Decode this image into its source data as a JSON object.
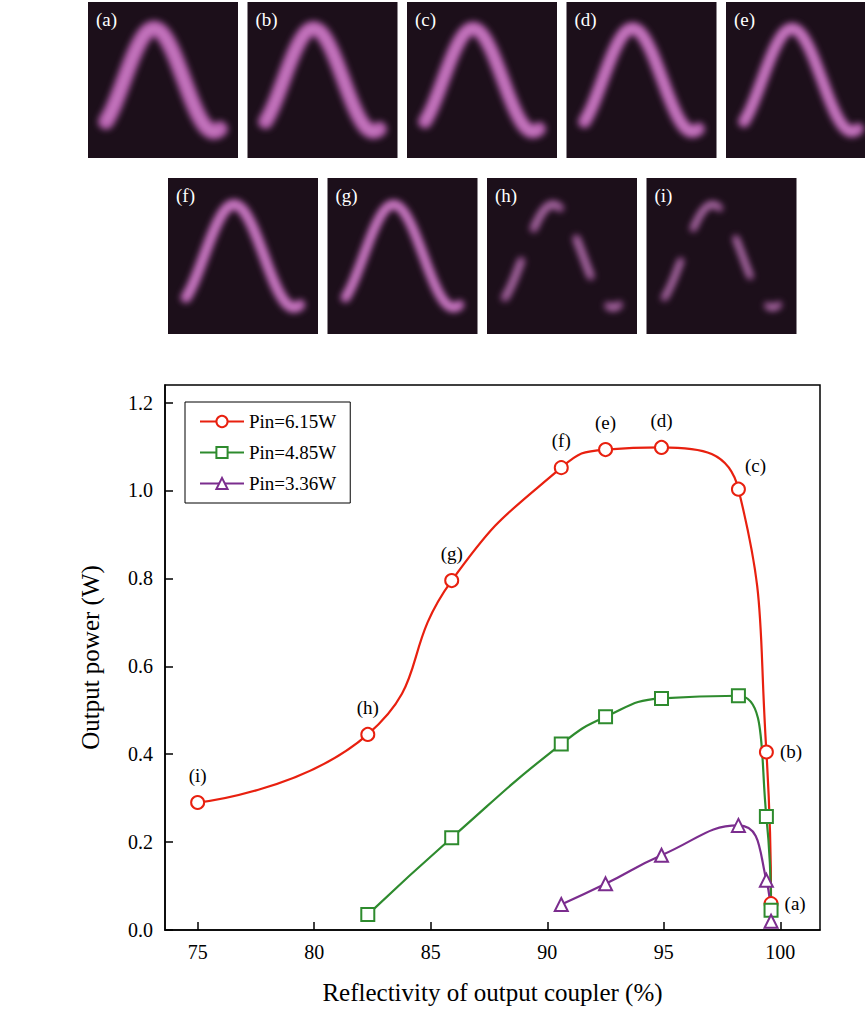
{
  "images": {
    "labels": [
      "(a)",
      "(b)",
      "(c)",
      "(d)",
      "(e)",
      "(f)",
      "(g)",
      "(h)",
      "(i)"
    ]
  },
  "chart_data": {
    "type": "line",
    "x_label": "Reflectivity of output coupler (%)",
    "y_label": "Output power (W)",
    "xlim": [
      73.6,
      101.7
    ],
    "xticks": [
      75,
      80,
      85,
      90,
      95,
      100
    ],
    "ylim": [
      0,
      1.24
    ],
    "yticks": [
      {
        "value": 0,
        "label": "0.0"
      },
      0.2,
      0.4,
      0.6,
      0.8,
      {
        "value": 1,
        "label": "1.0"
      },
      1.2
    ],
    "grid": false,
    "legend": "upper left",
    "series": [
      {
        "name": "Pin=6.15W",
        "color": "#e8200f",
        "marker": "circle",
        "x": [
          75,
          82.3,
          85.9,
          90.6,
          92.5,
          94.9,
          98.2,
          99.4,
          99.6
        ],
        "values": [
          0.29,
          0.445,
          0.795,
          1.052,
          1.093,
          1.098,
          1.003,
          0.405,
          0.06
        ],
        "point_labels": [
          "(i)",
          "(h)",
          "(g)",
          "(f)",
          "(e)",
          "(d)",
          "(c)",
          "(b)",
          "(a)"
        ]
      },
      {
        "name": "Pin=4.85W",
        "color": "#2e8b2e",
        "marker": "square",
        "x": [
          82.3,
          85.9,
          90.6,
          92.5,
          94.9,
          98.2,
          99.4,
          99.6
        ],
        "values": [
          0.035,
          0.21,
          0.423,
          0.485,
          0.527,
          0.533,
          0.258,
          0.045
        ]
      },
      {
        "name": "Pin=3.36W",
        "color": "#7b2d8e",
        "marker": "triangle",
        "x": [
          90.6,
          92.5,
          94.9,
          98.2,
          99.4,
          99.6
        ],
        "values": [
          0.058,
          0.105,
          0.17,
          0.238,
          0.113,
          0.02
        ]
      }
    ]
  }
}
